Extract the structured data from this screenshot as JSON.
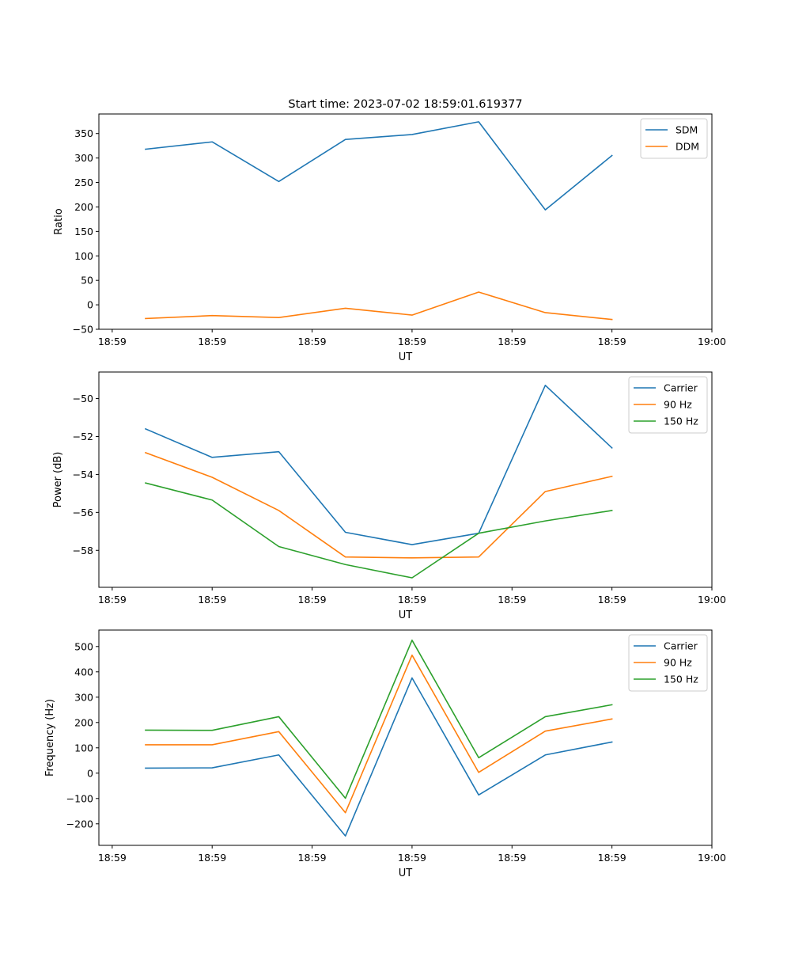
{
  "figure_title": "Start time: 2023-07-02 18:59:01.619377",
  "chart_data": [
    {
      "type": "line",
      "title": "Start time: 2023-07-02 18:59:01.619377",
      "xlabel": "UT",
      "ylabel": "Ratio",
      "xlim": [
        -0.7,
        8.5
      ],
      "x_ticks": [
        -0.5,
        1.0,
        2.5,
        4.0,
        5.5,
        7.0,
        8.5
      ],
      "x_tick_labels": [
        "18:59",
        "18:59",
        "18:59",
        "18:59",
        "18:59",
        "18:59",
        "19:00"
      ],
      "ylim": [
        -50,
        390
      ],
      "y_ticks": [
        -50,
        0,
        50,
        100,
        150,
        200,
        250,
        300,
        350
      ],
      "y_tick_labels": [
        "−50",
        "0",
        "50",
        "100",
        "150",
        "200",
        "250",
        "300",
        "350"
      ],
      "x": [
        0,
        1,
        2,
        3,
        4,
        5,
        6,
        7
      ],
      "legend": "upper right",
      "series": [
        {
          "name": "SDM",
          "color": "#1f77b4",
          "values": [
            318,
            333,
            252,
            338,
            348,
            374,
            194,
            305
          ]
        },
        {
          "name": "DDM",
          "color": "#ff7f0e",
          "values": [
            -28,
            -22,
            -26,
            -7,
            -21,
            26,
            -16,
            -30
          ]
        }
      ]
    },
    {
      "type": "line",
      "title": "",
      "xlabel": "UT",
      "ylabel": "Power (dB)",
      "xlim": [
        -0.7,
        8.5
      ],
      "x_ticks": [
        -0.5,
        1.0,
        2.5,
        4.0,
        5.5,
        7.0,
        8.5
      ],
      "x_tick_labels": [
        "18:59",
        "18:59",
        "18:59",
        "18:59",
        "18:59",
        "18:59",
        "19:00"
      ],
      "ylim": [
        -59.95,
        -48.6
      ],
      "y_ticks": [
        -58,
        -56,
        -54,
        -52,
        -50
      ],
      "y_tick_labels": [
        "−58",
        "−56",
        "−54",
        "−52",
        "−50"
      ],
      "x": [
        0,
        1,
        2,
        3,
        4,
        5,
        6,
        7
      ],
      "legend": "upper right",
      "series": [
        {
          "name": "Carrier",
          "color": "#1f77b4",
          "values": [
            -51.6,
            -53.1,
            -52.8,
            -57.05,
            -57.7,
            -57.1,
            -49.3,
            -52.6
          ]
        },
        {
          "name": "90 Hz",
          "color": "#ff7f0e",
          "values": [
            -52.85,
            -54.15,
            -55.9,
            -58.35,
            -58.4,
            -58.35,
            -54.9,
            -54.1
          ]
        },
        {
          "name": "150 Hz",
          "color": "#2ca02c",
          "values": [
            -54.45,
            -55.35,
            -57.8,
            -58.75,
            -59.45,
            -57.1,
            -56.45,
            -55.9
          ]
        }
      ]
    },
    {
      "type": "line",
      "title": "",
      "xlabel": "UT",
      "ylabel": "Frequency (Hz)",
      "xlim": [
        -0.7,
        8.5
      ],
      "x_ticks": [
        -0.5,
        1.0,
        2.5,
        4.0,
        5.5,
        7.0,
        8.5
      ],
      "x_tick_labels": [
        "18:59",
        "18:59",
        "18:59",
        "18:59",
        "18:59",
        "18:59",
        "19:00"
      ],
      "ylim": [
        -285,
        565
      ],
      "y_ticks": [
        -200,
        -100,
        0,
        100,
        200,
        300,
        400,
        500
      ],
      "y_tick_labels": [
        "−200",
        "−100",
        "0",
        "100",
        "200",
        "300",
        "400",
        "500"
      ],
      "x": [
        0,
        1,
        2,
        3,
        4,
        5,
        6,
        7
      ],
      "legend": "upper right",
      "series": [
        {
          "name": "Carrier",
          "color": "#1f77b4",
          "values": [
            20,
            21,
            72,
            -248,
            376,
            -86,
            72,
            123
          ]
        },
        {
          "name": "90 Hz",
          "color": "#ff7f0e",
          "values": [
            112,
            112,
            164,
            -156,
            466,
            3,
            166,
            214
          ]
        },
        {
          "name": "150 Hz",
          "color": "#2ca02c",
          "values": [
            170,
            169,
            223,
            -99,
            525,
            61,
            223,
            270
          ]
        }
      ]
    }
  ]
}
